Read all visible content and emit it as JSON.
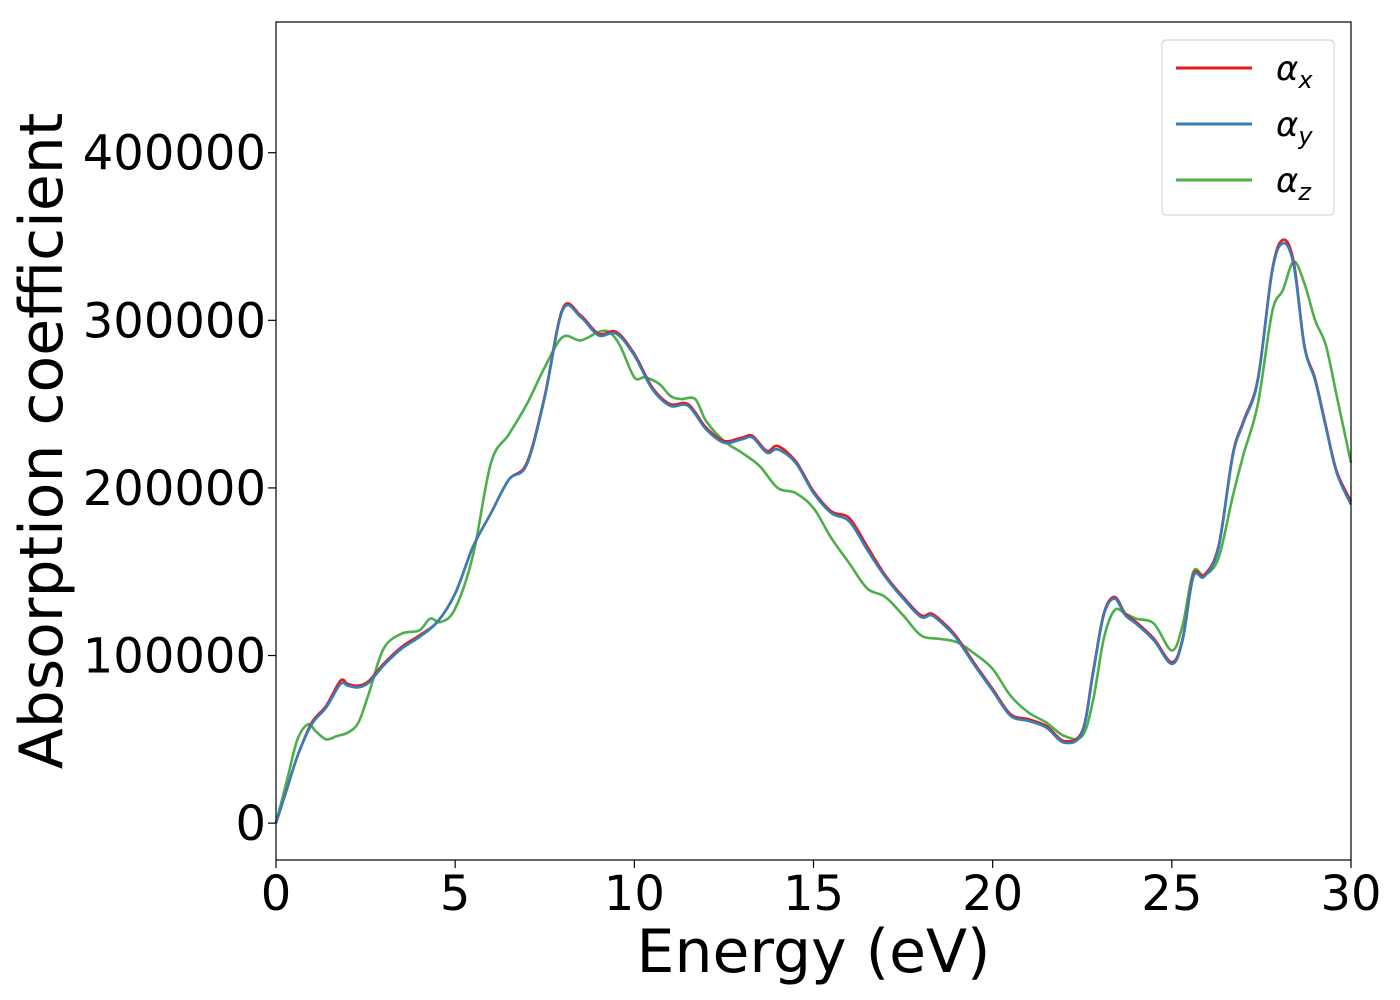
{
  "chart_data": {
    "type": "line",
    "xlabel": "Energy (eV)",
    "ylabel": "Absorption coefficient",
    "xlim": [
      0,
      30
    ],
    "ylim": [
      -22000,
      478000
    ],
    "xticks": [
      0,
      5,
      10,
      15,
      20,
      25,
      30
    ],
    "yticks": [
      0,
      100000,
      200000,
      300000,
      400000
    ],
    "grid": false,
    "legend_position": "top-right",
    "series": [
      {
        "name": "αx",
        "legend_base": "α",
        "legend_sub": "x",
        "color": "#e41a1c",
        "x": [
          0,
          0.3,
          0.6,
          1.0,
          1.4,
          1.8,
          2.0,
          2.3,
          2.6,
          3.0,
          3.5,
          4.0,
          4.5,
          5.0,
          5.5,
          6.0,
          6.5,
          7.0,
          7.5,
          8.0,
          8.5,
          9.0,
          9.5,
          10.0,
          10.5,
          11.0,
          11.5,
          12.0,
          12.5,
          13.0,
          13.3,
          13.7,
          14.0,
          14.5,
          15.0,
          15.5,
          16.0,
          16.5,
          17.0,
          17.5,
          18.0,
          18.3,
          18.7,
          19.0,
          19.5,
          20.0,
          20.5,
          21.0,
          21.5,
          22.0,
          22.5,
          22.8,
          23.1,
          23.4,
          23.7,
          24.0,
          24.5,
          25.0,
          25.3,
          25.6,
          25.9,
          26.3,
          26.7,
          27.0,
          27.4,
          27.8,
          28.1,
          28.4,
          28.7,
          29.0,
          29.3,
          29.6,
          30.0
        ],
        "y": [
          0,
          20000,
          40000,
          60000,
          70000,
          85000,
          83000,
          82000,
          85000,
          95000,
          105000,
          112000,
          120000,
          137000,
          165000,
          185000,
          205000,
          215000,
          255000,
          307000,
          303000,
          292000,
          293000,
          280000,
          260000,
          250000,
          250000,
          236000,
          228000,
          230000,
          231000,
          222000,
          225000,
          216000,
          198000,
          186000,
          182000,
          165000,
          148000,
          135000,
          124000,
          125000,
          118000,
          111000,
          95000,
          80000,
          65000,
          62000,
          58000,
          49000,
          55000,
          90000,
          125000,
          135000,
          125000,
          120000,
          110000,
          96000,
          110000,
          148000,
          148000,
          165000,
          220000,
          240000,
          265000,
          330000,
          348000,
          335000,
          285000,
          265000,
          237000,
          210000,
          192000
        ]
      },
      {
        "name": "αy",
        "legend_base": "α",
        "legend_sub": "y",
        "color": "#377eb8",
        "x": [
          0,
          0.3,
          0.6,
          1.0,
          1.4,
          1.8,
          2.0,
          2.3,
          2.6,
          3.0,
          3.5,
          4.0,
          4.5,
          5.0,
          5.5,
          6.0,
          6.5,
          7.0,
          7.5,
          8.0,
          8.5,
          9.0,
          9.5,
          10.0,
          10.5,
          11.0,
          11.5,
          12.0,
          12.5,
          13.0,
          13.3,
          13.7,
          14.0,
          14.5,
          15.0,
          15.5,
          16.0,
          16.5,
          17.0,
          17.5,
          18.0,
          18.3,
          18.7,
          19.0,
          19.5,
          20.0,
          20.5,
          21.0,
          21.5,
          22.0,
          22.5,
          22.8,
          23.1,
          23.4,
          23.7,
          24.0,
          24.5,
          25.0,
          25.3,
          25.6,
          25.9,
          26.3,
          26.7,
          27.0,
          27.4,
          27.8,
          28.1,
          28.4,
          28.7,
          29.0,
          29.3,
          29.6,
          30.0
        ],
        "y": [
          0,
          20000,
          40000,
          59000,
          69000,
          83000,
          82000,
          81000,
          84000,
          94000,
          104000,
          111000,
          120000,
          137000,
          165000,
          185000,
          205000,
          214000,
          254000,
          306000,
          302000,
          291000,
          292000,
          279000,
          259000,
          249000,
          249000,
          235000,
          227000,
          229000,
          230000,
          221000,
          223000,
          215000,
          197000,
          185000,
          180000,
          163000,
          147000,
          134000,
          123000,
          124000,
          117000,
          110000,
          94000,
          79000,
          64000,
          61000,
          57000,
          48000,
          54000,
          89000,
          124000,
          134000,
          124000,
          119000,
          109000,
          95000,
          109000,
          147000,
          147000,
          164000,
          219000,
          239000,
          264000,
          329000,
          346000,
          333000,
          284000,
          264000,
          236000,
          209000,
          190000
        ]
      },
      {
        "name": "αz",
        "legend_base": "α",
        "legend_sub": "z",
        "color": "#4daf4a",
        "x": [
          0,
          0.3,
          0.6,
          0.9,
          1.1,
          1.4,
          1.7,
          2.0,
          2.3,
          2.6,
          3.0,
          3.5,
          4.0,
          4.3,
          4.6,
          5.0,
          5.5,
          6.0,
          6.5,
          7.0,
          7.5,
          8.0,
          8.5,
          9.0,
          9.3,
          9.6,
          10.0,
          10.3,
          10.7,
          11.0,
          11.3,
          11.7,
          12.0,
          12.5,
          13.0,
          13.5,
          14.0,
          14.5,
          15.0,
          15.5,
          16.0,
          16.5,
          17.0,
          17.5,
          18.0,
          18.5,
          19.0,
          19.5,
          20.0,
          20.5,
          21.0,
          21.5,
          22.0,
          22.5,
          22.8,
          23.1,
          23.4,
          23.7,
          24.0,
          24.5,
          25.0,
          25.3,
          25.6,
          25.9,
          26.3,
          26.7,
          27.0,
          27.4,
          27.8,
          28.1,
          28.4,
          28.7,
          29.0,
          29.3,
          29.6,
          30.0
        ],
        "y": [
          0,
          25000,
          50000,
          59000,
          55000,
          50000,
          52000,
          54000,
          60000,
          78000,
          104000,
          113000,
          115000,
          122000,
          120000,
          128000,
          160000,
          215000,
          232000,
          250000,
          272000,
          290000,
          288000,
          293000,
          293000,
          285000,
          266000,
          266000,
          262000,
          255000,
          253000,
          253000,
          240000,
          228000,
          221000,
          213000,
          200000,
          197000,
          188000,
          170000,
          155000,
          140000,
          135000,
          124000,
          112000,
          110000,
          108000,
          101000,
          92000,
          76000,
          66000,
          60000,
          52000,
          52000,
          73000,
          110000,
          127000,
          125000,
          122000,
          119000,
          103000,
          118000,
          150000,
          148000,
          158000,
          195000,
          220000,
          250000,
          305000,
          318000,
          335000,
          322000,
          300000,
          285000,
          255000,
          215000
        ]
      }
    ]
  }
}
